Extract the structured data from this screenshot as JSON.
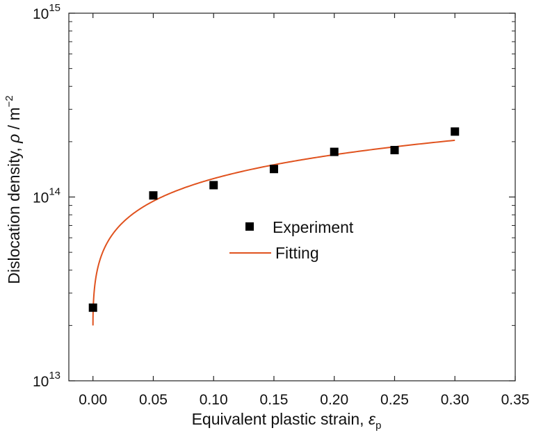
{
  "chart_data": {
    "type": "scatter",
    "xlabel": "Equivalent plastic strain, ",
    "xlabel_symbol": "ε",
    "xlabel_subscript": "p",
    "ylabel": "Dislocation density, ",
    "ylabel_symbol": "ρ",
    "ylabel_unit": " / m",
    "ylabel_unit_exp": "−2",
    "xlim": [
      -0.02,
      0.35
    ],
    "ylim": [
      10000000000000.0,
      1000000000000000.0
    ],
    "yscale": "log",
    "x_ticks": [
      0.0,
      0.05,
      0.1,
      0.15,
      0.2,
      0.25,
      0.3,
      0.35
    ],
    "x_tick_labels": [
      "0.00",
      "0.05",
      "0.10",
      "0.15",
      "0.20",
      "0.25",
      "0.30",
      "0.35"
    ],
    "y_ticks": [
      10000000000000.0,
      100000000000000.0,
      1000000000000000.0
    ],
    "y_tick_base": "10",
    "y_tick_exponents": [
      "13",
      "14",
      "15"
    ],
    "legend_position": "center",
    "series": [
      {
        "name": "Experiment",
        "kind": "scatter",
        "marker": "square",
        "color": "#000000",
        "x": [
          0.0,
          0.05,
          0.1,
          0.15,
          0.2,
          0.25,
          0.3
        ],
        "y": [
          25000000000000.0,
          102000000000000.0,
          116000000000000.0,
          142000000000000.0,
          176000000000000.0,
          180000000000000.0,
          227000000000000.0
        ]
      },
      {
        "name": "Fitting",
        "kind": "line",
        "color": "#e0521e",
        "model": "rho0 + k*sqrt(strain)",
        "rho0": 20000000000000.0,
        "k": 335000000000000.0,
        "x_range": [
          0.0,
          0.3
        ]
      }
    ]
  }
}
